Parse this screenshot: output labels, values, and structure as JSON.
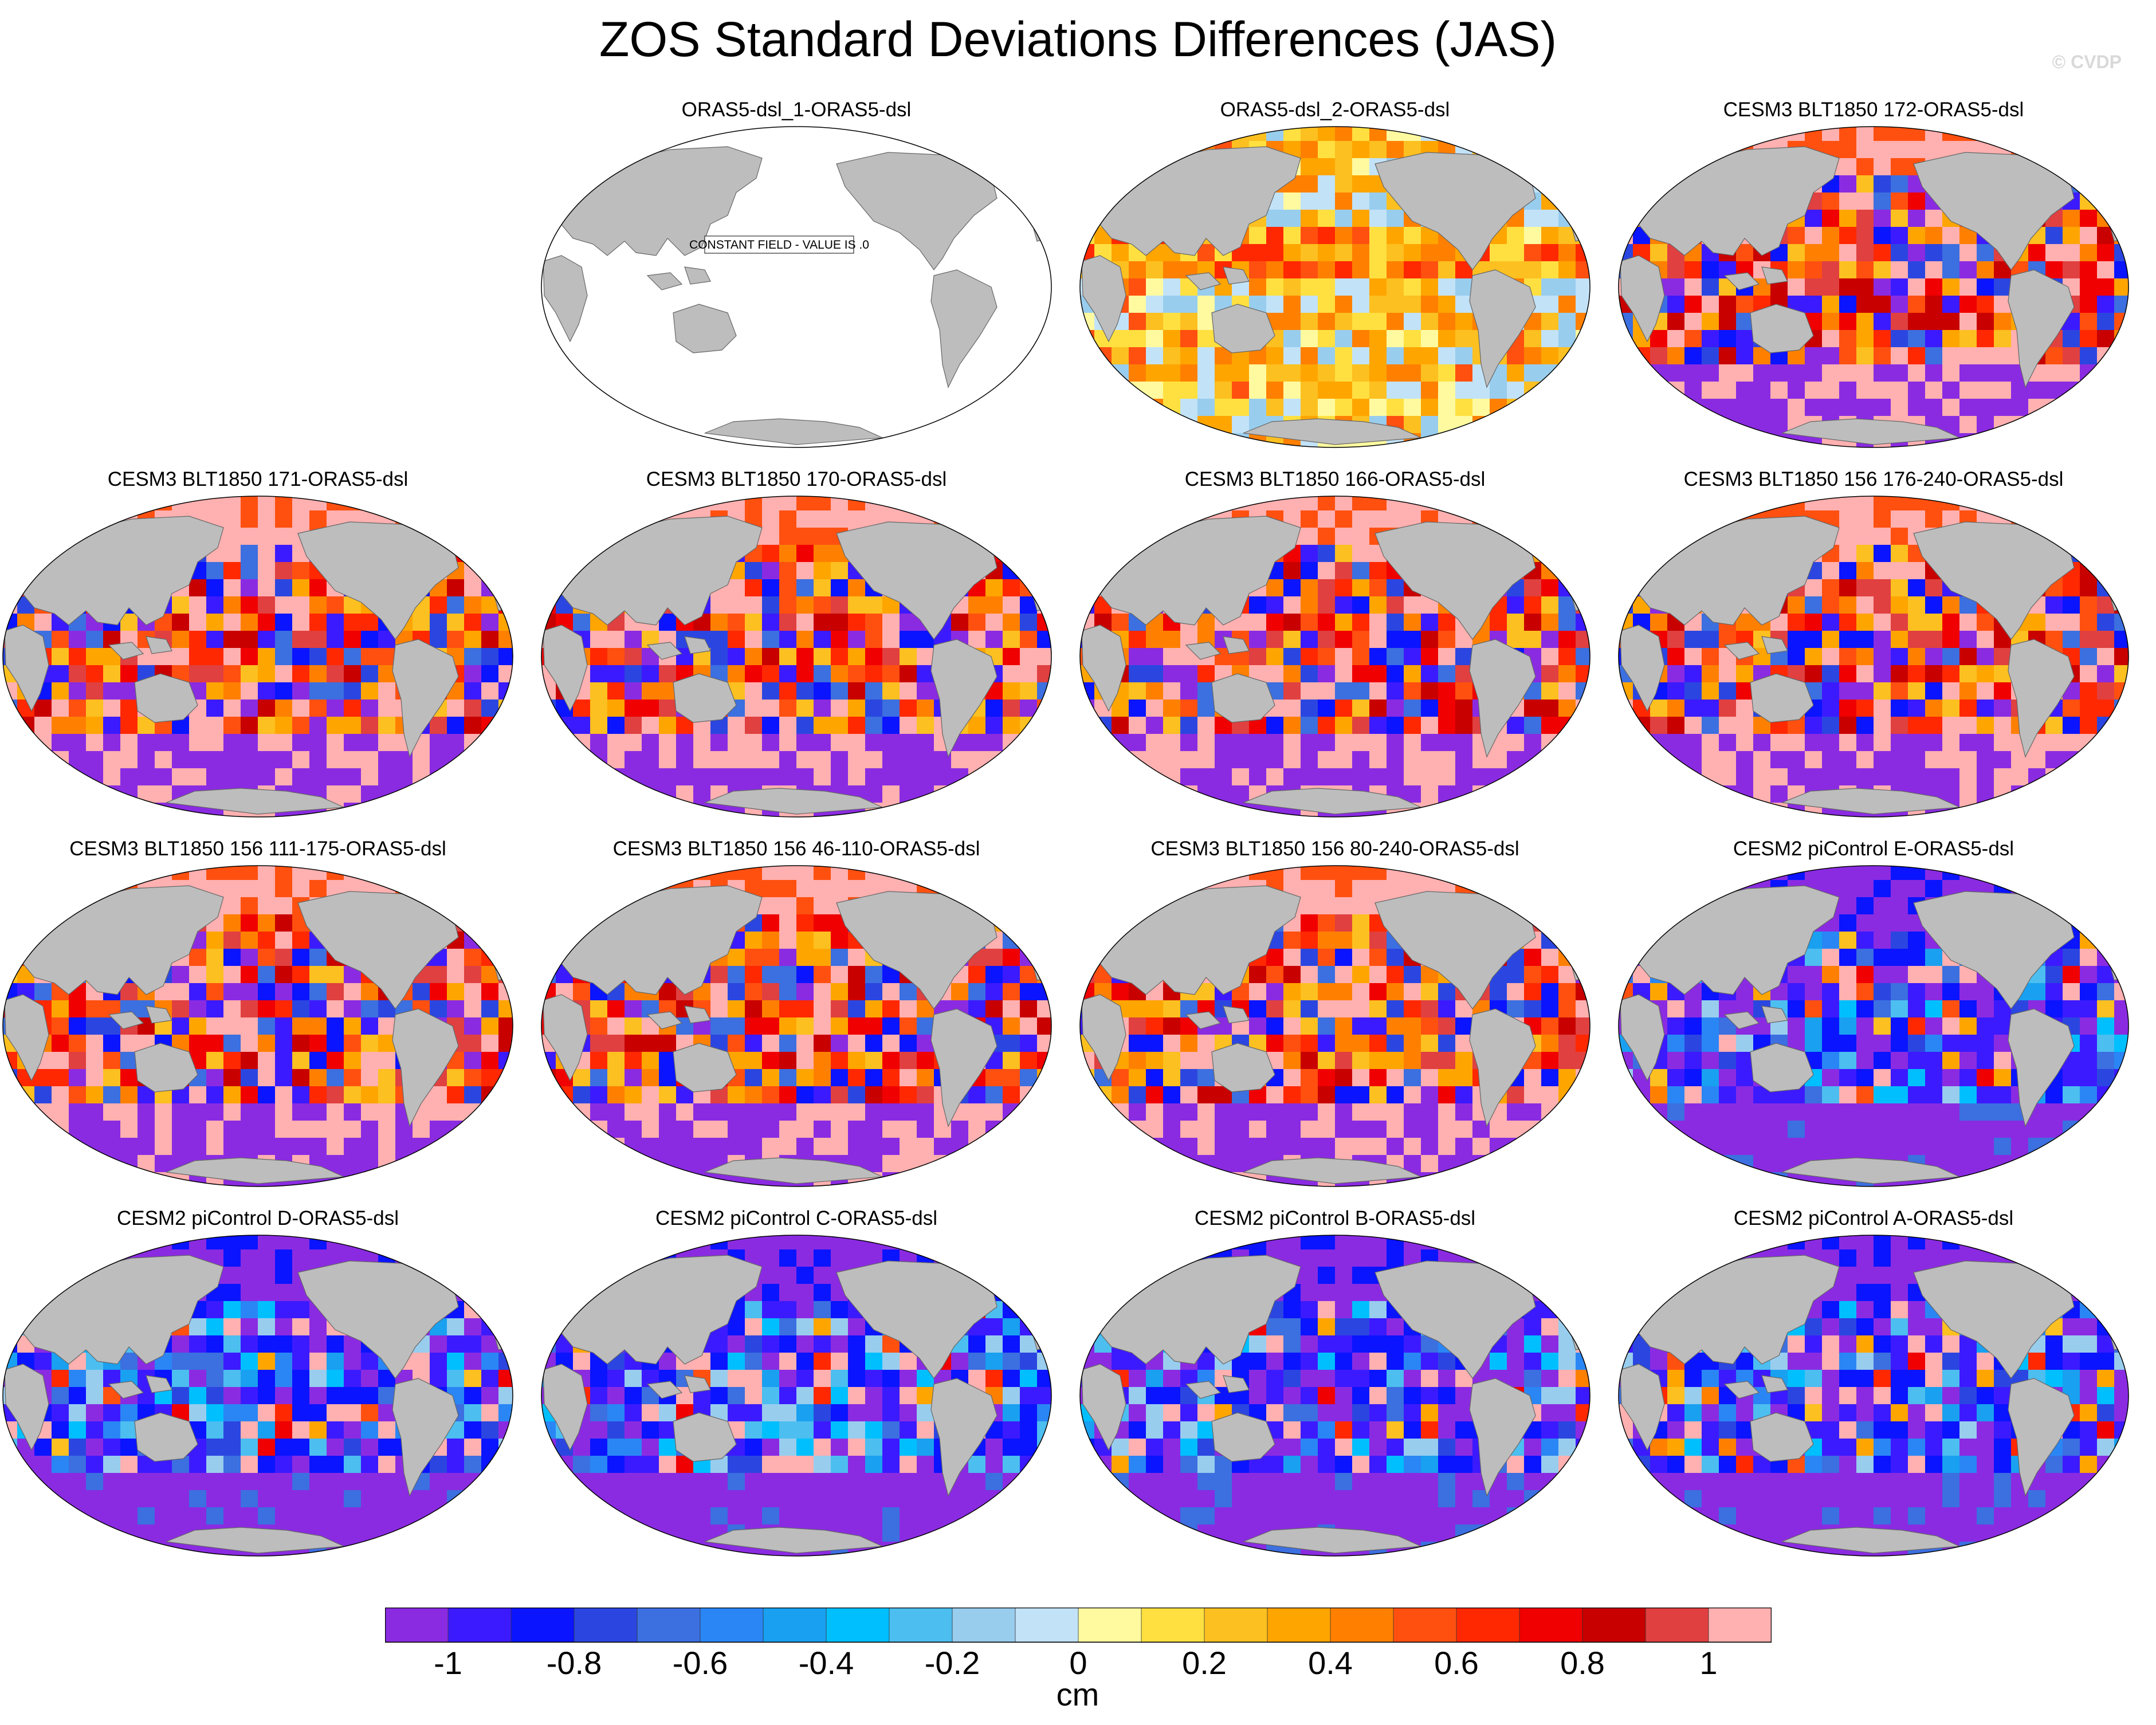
{
  "title": "ZOS Standard Deviations Differences (JAS)",
  "copyright": "© CVDP",
  "constant_field_label": "CONSTANT FIELD - VALUE IS .0",
  "colors": {
    "land": "#bdbdbd",
    "ocean_blank": "#ffffff",
    "coast": "#666666"
  },
  "panels": [
    {
      "title": "ORAS5-dsl_1-ORAS5-dsl",
      "style": "constant"
    },
    {
      "title": "ORAS5-dsl_2-ORAS5-dsl",
      "style": "warm"
    },
    {
      "title": "CESM3 BLT1850 172-ORAS5-dsl",
      "style": "mixed"
    },
    {
      "title": "CESM3 BLT1850 171-ORAS5-dsl",
      "style": "mixed"
    },
    {
      "title": "CESM3 BLT1850 170-ORAS5-dsl",
      "style": "mixed"
    },
    {
      "title": "CESM3 BLT1850 166-ORAS5-dsl",
      "style": "mixed"
    },
    {
      "title": "CESM3 BLT1850 156 176-240-ORAS5-dsl",
      "style": "mixed"
    },
    {
      "title": "CESM3 BLT1850 156 111-175-ORAS5-dsl",
      "style": "mixed"
    },
    {
      "title": "CESM3 BLT1850 156 46-110-ORAS5-dsl",
      "style": "mixed"
    },
    {
      "title": "CESM3 BLT1850 156 80-240-ORAS5-dsl",
      "style": "mixed"
    },
    {
      "title": "CESM2 piControl E-ORAS5-dsl",
      "style": "cool"
    },
    {
      "title": "CESM2 piControl D-ORAS5-dsl",
      "style": "cool"
    },
    {
      "title": "CESM2 piControl C-ORAS5-dsl",
      "style": "cool"
    },
    {
      "title": "CESM2 piControl B-ORAS5-dsl",
      "style": "cool"
    },
    {
      "title": "CESM2 piControl A-ORAS5-dsl",
      "style": "cool"
    }
  ],
  "colorbar": {
    "colors": [
      "#8a2be2",
      "#3c1aff",
      "#0a14ff",
      "#2b46e0",
      "#3c6fe0",
      "#2a86f5",
      "#19a0f0",
      "#00bfff",
      "#4cbef0",
      "#98cdee",
      "#c2e2f7",
      "#fffaa0",
      "#ffe040",
      "#fcc020",
      "#ffa500",
      "#ff8000",
      "#ff5010",
      "#ff2800",
      "#f00000",
      "#c80000",
      "#e04040",
      "#ffb0b0"
    ],
    "labels": [
      "-1",
      "-0.8",
      "-0.6",
      "-0.4",
      "-0.2",
      "0",
      "0.2",
      "0.4",
      "0.6",
      "0.8",
      "1"
    ],
    "units": "cm"
  }
}
